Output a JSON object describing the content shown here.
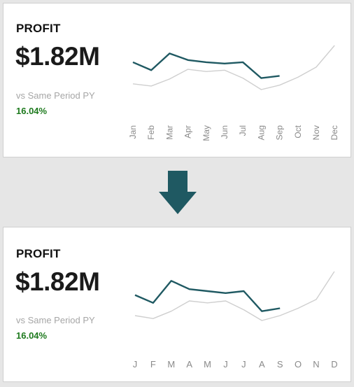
{
  "colors": {
    "current_series": "#1f5962",
    "prior_series": "#cfcfcf",
    "positive": "#1e7a1e",
    "arrow": "#1f5962"
  },
  "top_card": {
    "title": "PROFIT",
    "value": "$1.82M",
    "comparison_label": "vs Same Period PY",
    "change_pct": "16.04%"
  },
  "bottom_card": {
    "title": "PROFIT",
    "value": "$1.82M",
    "comparison_label": "vs Same Period PY",
    "change_pct": "16.04%"
  },
  "arrow_icon": "down-arrow-icon",
  "chart_data": [
    {
      "type": "line",
      "x": [
        "Jan",
        "Feb",
        "Mar",
        "Apr",
        "May",
        "Jun",
        "Jul",
        "Aug",
        "Sep",
        "Oct",
        "Nov",
        "Dec"
      ],
      "x_tick_labels": [
        "Jan",
        "Feb",
        "Mar",
        "Apr",
        "May",
        "Jun",
        "Jul",
        "Aug",
        "Sep",
        "Oct",
        "Nov",
        "Dec"
      ],
      "tick_rotation": "vertical",
      "ylim": [
        0,
        1
      ],
      "grid": false,
      "series": [
        {
          "role": "current",
          "values": [
            0.62,
            0.44,
            0.82,
            0.67,
            0.62,
            0.59,
            0.62,
            0.26,
            0.31,
            null,
            null,
            null
          ]
        },
        {
          "role": "prior",
          "values": [
            0.13,
            0.08,
            0.24,
            0.46,
            0.41,
            0.44,
            0.26,
            0.0,
            0.1,
            0.28,
            0.51,
            1.0
          ]
        }
      ]
    },
    {
      "type": "line",
      "x": [
        "Jan",
        "Feb",
        "Mar",
        "Apr",
        "May",
        "Jun",
        "Jul",
        "Aug",
        "Sep",
        "Oct",
        "Nov",
        "Dec"
      ],
      "x_tick_labels": [
        "J",
        "F",
        "M",
        "A",
        "M",
        "J",
        "J",
        "A",
        "S",
        "O",
        "N",
        "D"
      ],
      "tick_rotation": "horizontal",
      "ylim": [
        0,
        1
      ],
      "grid": false,
      "series": [
        {
          "role": "current",
          "values": [
            0.52,
            0.36,
            0.81,
            0.64,
            0.6,
            0.56,
            0.6,
            0.19,
            0.25,
            null,
            null,
            null
          ]
        },
        {
          "role": "prior",
          "values": [
            0.1,
            0.04,
            0.19,
            0.4,
            0.36,
            0.4,
            0.22,
            0.0,
            0.1,
            0.25,
            0.43,
            1.0
          ]
        }
      ]
    }
  ]
}
